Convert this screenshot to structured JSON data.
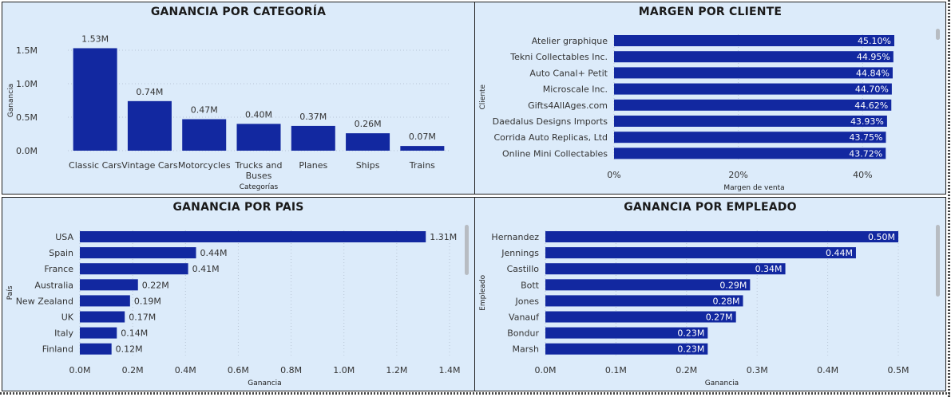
{
  "colors": {
    "bar": "#1228a0",
    "panel_bg": "#dcebfa",
    "text": "#333333",
    "grid": "#b9c6d6"
  },
  "chart_data": [
    {
      "id": "cat",
      "type": "bar",
      "title": "GANANCIA POR CATEGORÍA",
      "xlabel": "Categorías",
      "ylabel": "Ganancia",
      "categories": [
        "Classic Cars",
        "Vintage Cars",
        "Motorcycles",
        "Trucks and Buses",
        "Planes",
        "Ships",
        "Trains"
      ],
      "category_lines": [
        [
          "Classic Cars"
        ],
        [
          "Vintage Cars"
        ],
        [
          "Motorcycles"
        ],
        [
          "Trucks and",
          "Buses"
        ],
        [
          "Planes"
        ],
        [
          "Ships"
        ],
        [
          "Trains"
        ]
      ],
      "values": [
        1.53,
        0.74,
        0.47,
        0.4,
        0.37,
        0.26,
        0.07
      ],
      "labels": [
        "1.53M",
        "0.74M",
        "0.47M",
        "0.40M",
        "0.37M",
        "0.26M",
        "0.07M"
      ],
      "unit": "M",
      "ylim": [
        0,
        1.5
      ],
      "yticks": [
        0,
        0.5,
        1.0,
        1.5
      ],
      "ytick_labels": [
        "0.0M",
        "0.5M",
        "1.0M",
        "1.5M"
      ],
      "grid": true
    },
    {
      "id": "cli",
      "type": "bar",
      "orientation": "horizontal",
      "title": "MARGEN POR CLIENTE",
      "xlabel": "Margen de venta",
      "ylabel": "Cliente",
      "categories": [
        "Atelier graphique",
        "Tekni Collectables Inc.",
        "Auto Canal+ Petit",
        "Microscale Inc.",
        "Gifts4AllAges.com",
        "Daedalus Designs Imports",
        "Corrida Auto Replicas, Ltd",
        "Online Mini Collectables"
      ],
      "values": [
        45.1,
        44.95,
        44.84,
        44.7,
        44.62,
        43.93,
        43.75,
        43.72
      ],
      "labels": [
        "45.10%",
        "44.95%",
        "44.84%",
        "44.70%",
        "44.62%",
        "43.93%",
        "43.75%",
        "43.72%"
      ],
      "xlim": [
        0,
        45.1
      ],
      "xticks": [
        0,
        20,
        40
      ],
      "xtick_labels": [
        "0%",
        "20%",
        "40%"
      ],
      "label_inside": true,
      "grid": true
    },
    {
      "id": "pais",
      "type": "bar",
      "orientation": "horizontal",
      "title": "GANANCIA POR PAIS",
      "xlabel": "Ganancia",
      "ylabel": "País",
      "categories": [
        "USA",
        "Spain",
        "France",
        "Australia",
        "New Zealand",
        "UK",
        "Italy",
        "Finland"
      ],
      "values": [
        1.31,
        0.44,
        0.41,
        0.22,
        0.19,
        0.17,
        0.14,
        0.12
      ],
      "labels": [
        "1.31M",
        "0.44M",
        "0.41M",
        "0.22M",
        "0.19M",
        "0.17M",
        "0.14M",
        "0.12M"
      ],
      "xlim": [
        0,
        1.4
      ],
      "xticks": [
        0,
        0.2,
        0.4,
        0.6,
        0.8,
        1.0,
        1.2,
        1.4
      ],
      "xtick_labels": [
        "0.0M",
        "0.2M",
        "0.4M",
        "0.6M",
        "0.8M",
        "1.0M",
        "1.2M",
        "1.4M"
      ],
      "label_inside": false,
      "grid": true
    },
    {
      "id": "emp",
      "type": "bar",
      "orientation": "horizontal",
      "title": "GANANCIA POR EMPLEADO",
      "xlabel": "Ganancia",
      "ylabel": "Empleado",
      "categories": [
        "Hernandez",
        "Jennings",
        "Castillo",
        "Bott",
        "Jones",
        "Vanauf",
        "Bondur",
        "Marsh"
      ],
      "values": [
        0.5,
        0.44,
        0.34,
        0.29,
        0.28,
        0.27,
        0.23,
        0.23
      ],
      "labels": [
        "0.50M",
        "0.44M",
        "0.34M",
        "0.29M",
        "0.28M",
        "0.27M",
        "0.23M",
        "0.23M"
      ],
      "xlim": [
        0,
        0.5
      ],
      "xticks": [
        0,
        0.1,
        0.2,
        0.3,
        0.4,
        0.5
      ],
      "xtick_labels": [
        "0.0M",
        "0.1M",
        "0.2M",
        "0.3M",
        "0.4M",
        "0.5M"
      ],
      "label_inside": true,
      "grid": true
    }
  ]
}
